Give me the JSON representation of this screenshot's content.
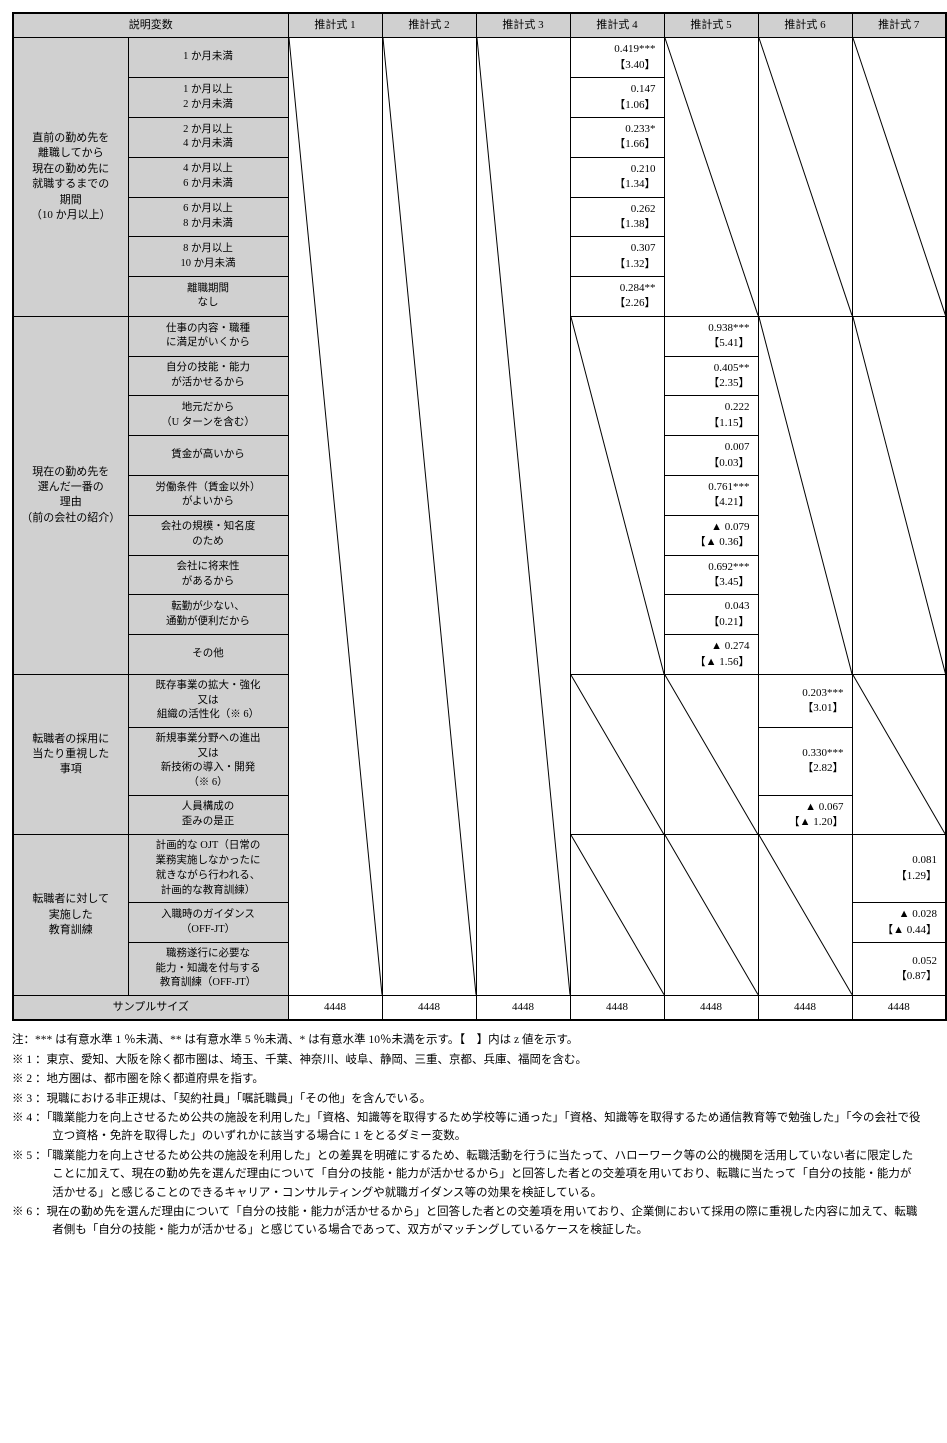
{
  "header": {
    "explanatory": "説明変数",
    "estimates": [
      "推計式 1",
      "推計式 2",
      "推計式 3",
      "推計式 4",
      "推計式 5",
      "推計式 6",
      "推計式 7"
    ]
  },
  "groups": [
    {
      "label": "直前の勤め先を\n離職してから\n現在の勤め先に\n就職するまでの\n期間\n（10 か月以上）",
      "col": 4,
      "rows": [
        {
          "sub": "1 か月未満",
          "v": "0.419***",
          "z": "【3.40】"
        },
        {
          "sub": "1 か月以上\n2 か月未満",
          "v": "0.147",
          "z": "【1.06】"
        },
        {
          "sub": "2 か月以上\n4 か月未満",
          "v": "0.233*",
          "z": "【1.66】"
        },
        {
          "sub": "4 か月以上\n6 か月未満",
          "v": "0.210",
          "z": "【1.34】"
        },
        {
          "sub": "6 か月以上\n8 か月未満",
          "v": "0.262",
          "z": "【1.38】"
        },
        {
          "sub": "8 か月以上\n10 か月未満",
          "v": "0.307",
          "z": "【1.32】"
        },
        {
          "sub": "離職期間\nなし",
          "v": "0.284**",
          "z": "【2.26】"
        }
      ]
    },
    {
      "label": "現在の勤め先を\n選んだ一番の\n理由\n（前の会社の紹介）",
      "col": 5,
      "rows": [
        {
          "sub": "仕事の内容・職種\nに満足がいくから",
          "v": "0.938***",
          "z": "【5.41】"
        },
        {
          "sub": "自分の技能・能力\nが活かせるから",
          "v": "0.405**",
          "z": "【2.35】"
        },
        {
          "sub": "地元だから\n（U ターンを含む）",
          "v": "0.222",
          "z": "【1.15】"
        },
        {
          "sub": "賃金が高いから",
          "v": "0.007",
          "z": "【0.03】"
        },
        {
          "sub": "労働条件（賃金以外）\nがよいから",
          "v": "0.761***",
          "z": "【4.21】"
        },
        {
          "sub": "会社の規模・知名度\nのため",
          "v": "▲ 0.079",
          "z": "【▲ 0.36】"
        },
        {
          "sub": "会社に将来性\nがあるから",
          "v": "0.692***",
          "z": "【3.45】"
        },
        {
          "sub": "転勤が少ない、\n通勤が便利だから",
          "v": "0.043",
          "z": "【0.21】"
        },
        {
          "sub": "その他",
          "v": "▲ 0.274",
          "z": "【▲ 1.56】"
        }
      ]
    },
    {
      "label": "転職者の採用に\n当たり重視した\n事項",
      "col": 6,
      "rows": [
        {
          "sub": "既存事業の拡大・強化\n又は\n組織の活性化（※ 6）",
          "v": "0.203***",
          "z": "【3.01】"
        },
        {
          "sub": "新規事業分野への進出\n又は\n新技術の導入・開発\n（※ 6）",
          "v": "0.330***",
          "z": "【2.82】"
        },
        {
          "sub": "人員構成の\n歪みの是正",
          "v": "▲ 0.067",
          "z": "【▲ 1.20】"
        }
      ]
    },
    {
      "label": "転職者に対して\n実施した\n教育訓練",
      "col": 7,
      "rows": [
        {
          "sub": "計画的な OJT（日常の\n業務実施しなかったに\n就きながら行われる、\n計画的な教育訓練）",
          "v": "0.081",
          "z": "【1.29】"
        },
        {
          "sub": "入職時のガイダンス\n（OFF-JT）",
          "v": "▲ 0.028",
          "z": "【▲ 0.44】"
        },
        {
          "sub": "職務遂行に必要な\n能力・知識を付与する\n教育訓練（OFF-JT）",
          "v": "0.052",
          "z": "【0.87】"
        }
      ]
    }
  ],
  "sample": {
    "label": "サンプルサイズ",
    "vals": [
      "4448",
      "4448",
      "4448",
      "4448",
      "4448",
      "4448",
      "4448"
    ]
  },
  "notes": [
    "注：*** は有意水準 1 ％未満、** は有意水準 5 ％未満、* は有意水準 10％未満を示す。【　】内は z 値を示す。",
    "※ 1 ：東京、愛知、大阪を除く都市圏は、埼玉、千葉、神奈川、岐阜、静岡、三重、京都、兵庫、福岡を含む。",
    "※ 2 ：地方圏は、都市圏を除く都道府県を指す。",
    "※ 3 ：現職における非正規は、「契約社員」「嘱託職員」「その他」を含んでいる。",
    "※ 4 ：「職業能力を向上させるため公共の施設を利用した」「資格、知識等を取得するため学校等に通った」「資格、知識等を取得するため通信教育等で勉強した」「今の会社で役立つ資格・免許を取得した」のいずれかに該当する場合に 1 をとるダミー変数。",
    "※ 5 ：「職業能力を向上させるため公共の施設を利用した」との差異を明確にするため、転職活動を行うに当たって、ハローワーク等の公的機関を活用していない者に限定したことに加えて、現在の勤め先を選んだ理由について「自分の技能・能力が活かせるから」と回答した者との交差項を用いており、転職に当たって「自分の技能・能力が活かせる」と感じることのできるキャリア・コンサルティングや就職ガイダンス等の効果を検証している。",
    "※ 6 ：現在の勤め先を選んだ理由について「自分の技能・能力が活かせるから」と回答した者との交差項を用いており、企業側において採用の際に重視した内容に加えて、転職者側も「自分の技能・能力が活かせる」と感じている場合であって、双方がマッチングしているケースを検証した。"
  ]
}
